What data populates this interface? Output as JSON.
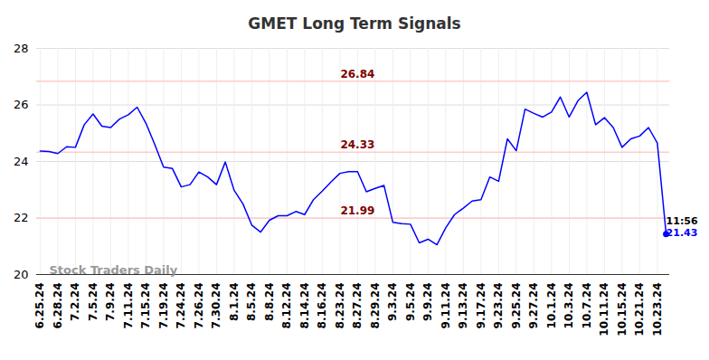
{
  "chart_data": {
    "type": "line",
    "title": "GMET Long Term Signals",
    "categories": [
      "6.25.24",
      null,
      "6.28.24",
      null,
      "7.2.24",
      null,
      "7.5.24",
      null,
      "7.9.24",
      null,
      "7.11.24",
      null,
      "7.15.24",
      null,
      "7.19.24",
      null,
      "7.24.24",
      null,
      "7.26.24",
      null,
      "7.30.24",
      null,
      "8.1.24",
      null,
      "8.5.24",
      null,
      "8.8.24",
      null,
      "8.12.24",
      null,
      "8.14.24",
      null,
      "8.16.24",
      null,
      "8.23.24",
      null,
      "8.27.24",
      null,
      "8.29.24",
      null,
      "9.3.24",
      null,
      "9.5.24",
      null,
      "9.9.24",
      null,
      "9.11.24",
      null,
      "9.13.24",
      null,
      "9.17.24",
      null,
      "9.23.24",
      null,
      "9.25.24",
      null,
      "9.27.24",
      null,
      "10.1.24",
      null,
      "10.3.24",
      null,
      "10.7.24",
      null,
      "10.11.24",
      null,
      "10.15.24",
      null,
      "10.21.24",
      null,
      "10.23.24",
      null
    ],
    "series": [
      {
        "color": "#0000ff",
        "values": [
          24.37,
          24.35,
          24.28,
          24.52,
          24.5,
          25.3,
          25.68,
          25.25,
          25.2,
          25.5,
          25.65,
          25.92,
          25.35,
          24.6,
          23.8,
          23.75,
          23.1,
          23.18,
          23.63,
          23.45,
          23.18,
          23.98,
          22.98,
          22.5,
          21.75,
          21.5,
          21.92,
          22.08,
          22.08,
          22.23,
          22.12,
          22.65,
          22.95,
          23.28,
          23.58,
          23.64,
          23.64,
          22.93,
          23.05,
          23.15,
          21.85,
          21.8,
          21.78,
          21.12,
          21.25,
          21.05,
          21.65,
          22.12,
          22.35,
          22.6,
          22.65,
          23.45,
          23.3,
          24.8,
          24.38,
          25.85,
          25.7,
          25.57,
          25.75,
          26.28,
          25.57,
          26.15,
          26.45,
          25.3,
          25.55,
          25.2,
          24.5,
          24.8,
          24.9,
          25.2,
          24.65,
          21.43
        ]
      }
    ],
    "reference_lines": [
      {
        "value": 26.84,
        "color": "#ffcccc"
      },
      {
        "value": 24.33,
        "color": "#ffcccc"
      },
      {
        "value": 21.99,
        "color": "#ffcccc"
      }
    ],
    "last_point": {
      "time": "11:56",
      "value": 21.43
    },
    "watermark": "Stock Traders Daily",
    "ylim": [
      20,
      28
    ],
    "yticks": [
      20,
      22,
      24,
      26,
      28
    ],
    "grid": true
  }
}
